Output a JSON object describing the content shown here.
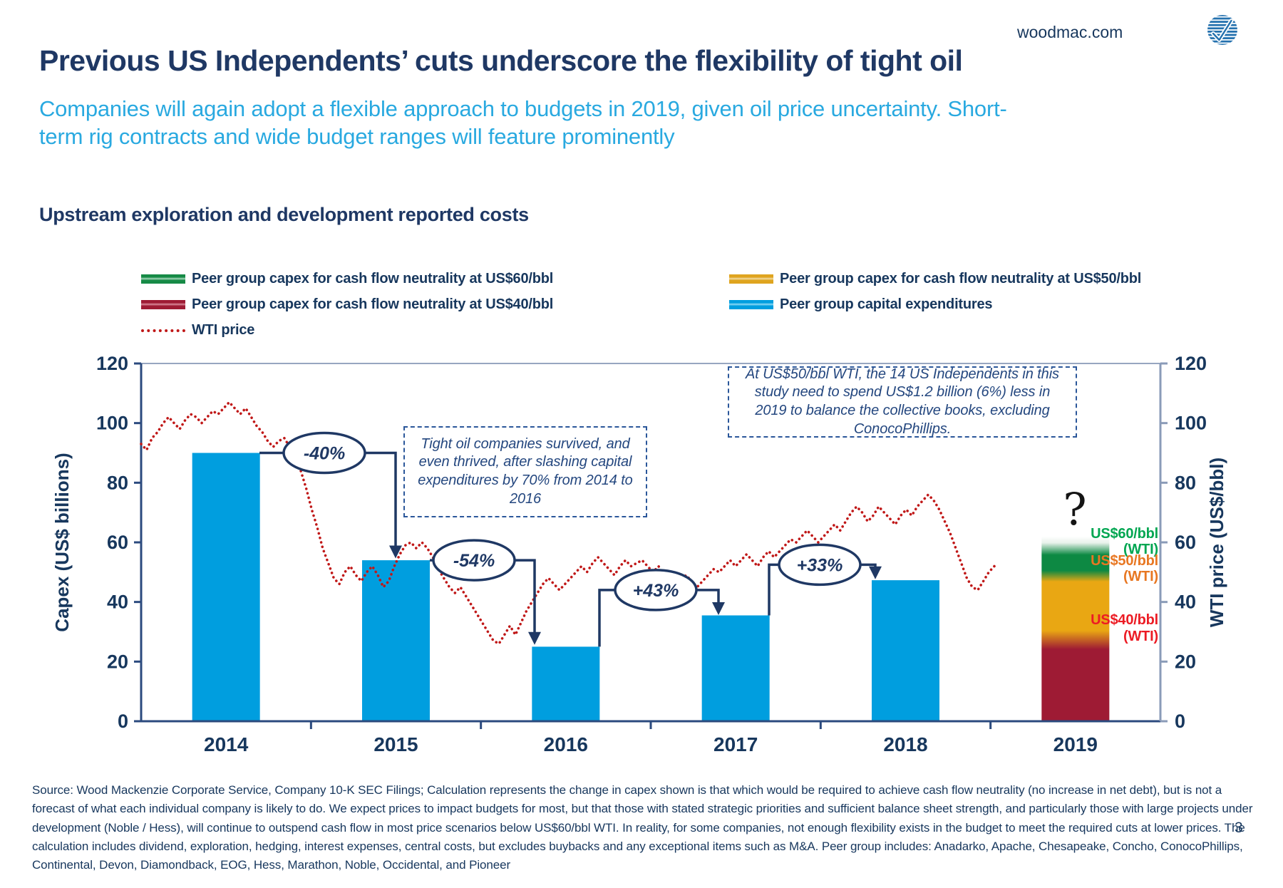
{
  "header": {
    "site": "woodmac.com",
    "logo": "woodmac-striped-globe-checkmark",
    "title": "Previous US Independents’ cuts underscore the flexibility of tight oil",
    "subtitle": "Companies will again adopt a flexible approach to budgets in 2019, given oil price uncertainty. Short-term rig contracts and wide budget ranges will feature prominently"
  },
  "chart_heading": "Upstream exploration and development reported costs",
  "legend": {
    "items": [
      {
        "label": "Peer group capex for cash flow neutrality at US$60/bbl",
        "color": "#168A46",
        "light": "#A9D9BD",
        "type": "bar"
      },
      {
        "label": "Peer group capex for cash flow neutrality at US$50/bbl",
        "color": "#DFA41F",
        "light": "#F3DDA5",
        "type": "bar"
      },
      {
        "label": "Peer group capex for cash flow neutrality at US$40/bbl",
        "color": "#9E1B34",
        "light": "#DA8B9C",
        "type": "bar"
      },
      {
        "label": "Peer group capital expenditures",
        "color": "#009EDF",
        "light": "#90DAF5",
        "type": "bar"
      },
      {
        "label": "WTI price",
        "color": "#C01818",
        "type": "dotted-line"
      }
    ]
  },
  "chart_data": {
    "type": "bar+line",
    "title": "Upstream exploration and development reported costs",
    "categories": [
      "2014",
      "2015",
      "2016",
      "2017",
      "2018",
      "2019"
    ],
    "ylim_left": [
      0,
      120
    ],
    "ylim_right": [
      0,
      120
    ],
    "yticks": [
      0,
      20,
      40,
      60,
      80,
      100,
      120
    ],
    "ylabel_left": "Capex (US$ billions)",
    "ylabel_right": "WTI price (US$/bbl)",
    "grid": "off",
    "bar_series": {
      "name": "Peer group capital expenditures",
      "color": "#009EDF",
      "values": [
        90,
        54,
        25,
        35.5,
        47.3,
        null
      ]
    },
    "stacked_2019": {
      "category": "2019",
      "top_value": 62,
      "uncertainty_label": "?",
      "segments": [
        {
          "name": "Peer group capex for cash flow neutrality at US$40/bbl",
          "from": 0,
          "to": 25,
          "color": "#9E1B34"
        },
        {
          "name": "blend",
          "from": 25,
          "to": 30,
          "color": "#9E1B34>#E9A713"
        },
        {
          "name": "Peer group capex for cash flow neutrality at US$50/bbl",
          "from": 30,
          "to": 47.5,
          "color": "#E9A713"
        },
        {
          "name": "blend",
          "from": 47.5,
          "to": 50.5,
          "color": "#E9A713>#0D8943"
        },
        {
          "name": "Peer group capex for cash flow neutrality at US$60/bbl",
          "from": 50.5,
          "to": 56,
          "color": "#0D8943"
        },
        {
          "name": "fade to uncertain",
          "from": 56,
          "to": 62,
          "color": "#0D8943>#FFFFFF"
        }
      ],
      "gradient_stops": [
        [
          0,
          "#FFFFFF"
        ],
        [
          0.035,
          "#E8F2EB"
        ],
        [
          0.1,
          "#0D8943"
        ],
        [
          0.185,
          "#0D8943"
        ],
        [
          0.245,
          "#E9A713"
        ],
        [
          0.51,
          "#E9A713"
        ],
        [
          0.61,
          "#9E1B34"
        ],
        [
          1,
          "#9E1B34"
        ]
      ]
    },
    "threshold_labels": [
      {
        "text": "US$60/bbl",
        "sub": "(WTI)",
        "color": "#00A651",
        "v": 60
      },
      {
        "text": "US$50/bbl",
        "sub": "(WTI)",
        "color": "#E87722",
        "v": 51
      },
      {
        "text": "US$40/bbl",
        "sub": "(WTI)",
        "color": "#EC1C24",
        "v": 31
      }
    ],
    "annotations": [
      {
        "label": "-40%",
        "path_xv": [
          [
            364,
            90
          ],
          [
            555,
            90
          ],
          [
            555,
            57.5
          ]
        ],
        "oval_xv": [
          455,
          90
        ]
      },
      {
        "label": "-54%",
        "path_xv": [
          [
            603,
            54
          ],
          [
            750,
            54
          ],
          [
            750,
            28.5
          ]
        ],
        "oval_xv": [
          665,
          54
        ]
      },
      {
        "label": "+43%",
        "path_xv": [
          [
            841,
            25
          ],
          [
            841,
            44
          ],
          [
            1008,
            44
          ],
          [
            1008,
            38.5
          ]
        ],
        "oval_xv": [
          920,
          44
        ]
      },
      {
        "label": "+33%",
        "path_xv": [
          [
            1079,
            35.5
          ],
          [
            1079,
            52.5
          ],
          [
            1228,
            52.5
          ],
          [
            1228,
            50.5
          ]
        ],
        "oval_xv": [
          1150,
          52.5
        ]
      }
    ],
    "callouts": [
      {
        "text": "Tight oil companies survived, and even thrived, after slashing capital expenditures by 70% from 2014 to 2016"
      },
      {
        "text": "At US$50/bbl WTI, the 14 US Independents in this study need to spend US$1.2 billion (6%) less in 2019 to balance the collective books, excluding ConocoPhillips."
      }
    ],
    "wti_line": {
      "name": "WTI price",
      "color": "#C01818",
      "x_unit": "months since Jan 2014",
      "points": [
        [
          0,
          93
        ],
        [
          0.4,
          91
        ],
        [
          0.8,
          95
        ],
        [
          1.2,
          97
        ],
        [
          1.6,
          100
        ],
        [
          2,
          102
        ],
        [
          2.4,
          100
        ],
        [
          2.8,
          98
        ],
        [
          3.2,
          101
        ],
        [
          3.6,
          103
        ],
        [
          4,
          102
        ],
        [
          4.4,
          100
        ],
        [
          4.8,
          102
        ],
        [
          5.2,
          104
        ],
        [
          5.6,
          103
        ],
        [
          6,
          105
        ],
        [
          6.4,
          107
        ],
        [
          6.8,
          105
        ],
        [
          7.2,
          103
        ],
        [
          7.6,
          105
        ],
        [
          8,
          102
        ],
        [
          8.4,
          99
        ],
        [
          8.8,
          97
        ],
        [
          9.2,
          94
        ],
        [
          9.6,
          92
        ],
        [
          10,
          94
        ],
        [
          10.4,
          95
        ],
        [
          10.8,
          92
        ],
        [
          11,
          90
        ],
        [
          11.3,
          88
        ],
        [
          11.6,
          84
        ],
        [
          12,
          78
        ],
        [
          12.4,
          71
        ],
        [
          12.8,
          65
        ],
        [
          13.2,
          58
        ],
        [
          13.6,
          53
        ],
        [
          14,
          48
        ],
        [
          14.4,
          46
        ],
        [
          14.8,
          50
        ],
        [
          15.2,
          52
        ],
        [
          15.6,
          49
        ],
        [
          16,
          47
        ],
        [
          16.4,
          50
        ],
        [
          16.8,
          52
        ],
        [
          17.2,
          49
        ],
        [
          17.6,
          45
        ],
        [
          18,
          47
        ],
        [
          18.4,
          52
        ],
        [
          18.8,
          56
        ],
        [
          19.2,
          59
        ],
        [
          19.6,
          60
        ],
        [
          20,
          58
        ],
        [
          20.4,
          60
        ],
        [
          20.8,
          58
        ],
        [
          21.2,
          55
        ],
        [
          21.6,
          51
        ],
        [
          22,
          48
        ],
        [
          22.4,
          45
        ],
        [
          22.8,
          43
        ],
        [
          23.2,
          45
        ],
        [
          23.6,
          42
        ],
        [
          24,
          39
        ],
        [
          24.4,
          36
        ],
        [
          24.8,
          33
        ],
        [
          25.2,
          30
        ],
        [
          25.6,
          27
        ],
        [
          26,
          26
        ],
        [
          26.4,
          29
        ],
        [
          26.8,
          32
        ],
        [
          27.2,
          29
        ],
        [
          27.6,
          33
        ],
        [
          28,
          37
        ],
        [
          28.4,
          40
        ],
        [
          28.8,
          43
        ],
        [
          29.2,
          46
        ],
        [
          29.6,
          48
        ],
        [
          30,
          46
        ],
        [
          30.4,
          44
        ],
        [
          30.8,
          46
        ],
        [
          31.2,
          48
        ],
        [
          31.6,
          50
        ],
        [
          32,
          52
        ],
        [
          32.4,
          50
        ],
        [
          32.8,
          53
        ],
        [
          33.2,
          55
        ],
        [
          33.6,
          53
        ],
        [
          34,
          51
        ],
        [
          34.4,
          49
        ],
        [
          34.8,
          52
        ],
        [
          35.2,
          54
        ],
        [
          35.6,
          52
        ],
        [
          36,
          53
        ],
        [
          36.4,
          54
        ],
        [
          36.8,
          52
        ],
        [
          37.2,
          50
        ],
        [
          37.6,
          52
        ],
        [
          38,
          49
        ],
        [
          38.4,
          47
        ],
        [
          38.8,
          45
        ],
        [
          39.2,
          47
        ],
        [
          39.6,
          49
        ],
        [
          40,
          47
        ],
        [
          40.4,
          45
        ],
        [
          40.8,
          47
        ],
        [
          41.2,
          49
        ],
        [
          41.6,
          51
        ],
        [
          42,
          50
        ],
        [
          42.4,
          52
        ],
        [
          42.8,
          54
        ],
        [
          43.2,
          52
        ],
        [
          43.6,
          54
        ],
        [
          44,
          56
        ],
        [
          44.4,
          54
        ],
        [
          44.8,
          52
        ],
        [
          45.2,
          55
        ],
        [
          45.6,
          57
        ],
        [
          46,
          55
        ],
        [
          46.4,
          57
        ],
        [
          46.8,
          59
        ],
        [
          47.2,
          61
        ],
        [
          47.6,
          60
        ],
        [
          48,
          62
        ],
        [
          48.4,
          64
        ],
        [
          48.8,
          62
        ],
        [
          49.2,
          60
        ],
        [
          49.6,
          62
        ],
        [
          50,
          64
        ],
        [
          50.4,
          66
        ],
        [
          50.8,
          64
        ],
        [
          51.2,
          67
        ],
        [
          51.6,
          70
        ],
        [
          52,
          72
        ],
        [
          52.4,
          70
        ],
        [
          52.8,
          67
        ],
        [
          53.2,
          69
        ],
        [
          53.6,
          72
        ],
        [
          54,
          70
        ],
        [
          54.4,
          68
        ],
        [
          54.8,
          66
        ],
        [
          55.2,
          69
        ],
        [
          55.6,
          71
        ],
        [
          56,
          69
        ],
        [
          56.4,
          72
        ],
        [
          56.8,
          74
        ],
        [
          57.2,
          76
        ],
        [
          57.6,
          74
        ],
        [
          58,
          71
        ],
        [
          58.4,
          67
        ],
        [
          58.8,
          63
        ],
        [
          59.2,
          58
        ],
        [
          59.6,
          53
        ],
        [
          60,
          48
        ],
        [
          60.4,
          45
        ],
        [
          60.8,
          44
        ],
        [
          61.2,
          47
        ],
        [
          61.6,
          50
        ],
        [
          62,
          52
        ]
      ]
    }
  },
  "footer": {
    "source_text": "Source: Wood Mackenzie Corporate Service, Company 10-K SEC Filings;  Calculation represents the change in capex shown is that which would be required to achieve cash flow neutrality (no increase in net debt), but is not a forecast of what each individual company is likely to do. We expect prices to impact budgets for most, but that those with stated strategic priorities and sufficient balance sheet strength, and particularly those with large projects under development (Noble / Hess), will continue to outspend cash flow in most price scenarios below US$60/bbl WTI. In reality, for some companies, not enough flexibility exists in the budget to meet the required cuts at lower prices. The calculation includes dividend, exploration, hedging, interest expenses, central costs, but excludes buybacks and any exceptional items such as M&A. Peer group includes: Anadarko, Apache, Chesapeake, Concho, ConocoPhillips, Continental, Devon, Diamondback, EOG, Hess, Marathon, Noble, Occidental, and Pioneer",
    "page_number": "3"
  }
}
